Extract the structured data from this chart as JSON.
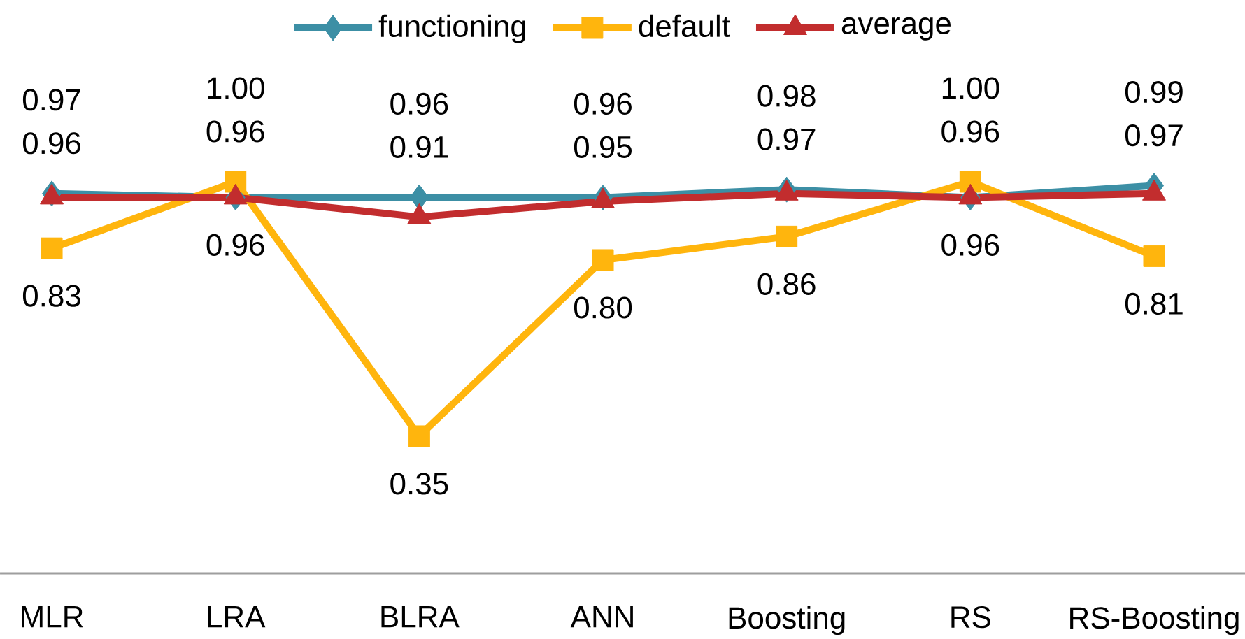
{
  "chart_data": {
    "type": "line",
    "categories": [
      "MLR",
      "LRA",
      "BLRA",
      "ANN",
      "Boosting",
      "RS",
      "RS-Boosting"
    ],
    "series": [
      {
        "name": "functioning",
        "color": "#3c8fa5",
        "marker": "diamond",
        "values": [
          0.97,
          0.96,
          0.96,
          0.96,
          0.98,
          0.96,
          0.99
        ],
        "value_labels": [
          "0.97",
          "0.96",
          "0.96",
          "0.96",
          "0.98",
          "0.96",
          "0.99"
        ]
      },
      {
        "name": "default",
        "color": "#ffb50d",
        "marker": "square",
        "values": [
          0.83,
          1.0,
          0.35,
          0.8,
          0.86,
          1.0,
          0.81
        ],
        "value_labels": [
          "0.83",
          "1.00",
          "0.35",
          "0.80",
          "0.86",
          "1.00",
          "0.81"
        ]
      },
      {
        "name": "average",
        "color": "#c22d2e",
        "marker": "triangle",
        "values": [
          0.96,
          0.96,
          0.91,
          0.95,
          0.97,
          0.96,
          0.97
        ],
        "value_labels": [
          "0.96",
          "0.96",
          "0.91",
          "0.95",
          "0.97",
          "0.96",
          "0.97"
        ]
      }
    ],
    "tick_labels": "x",
    "legend": "top"
  }
}
